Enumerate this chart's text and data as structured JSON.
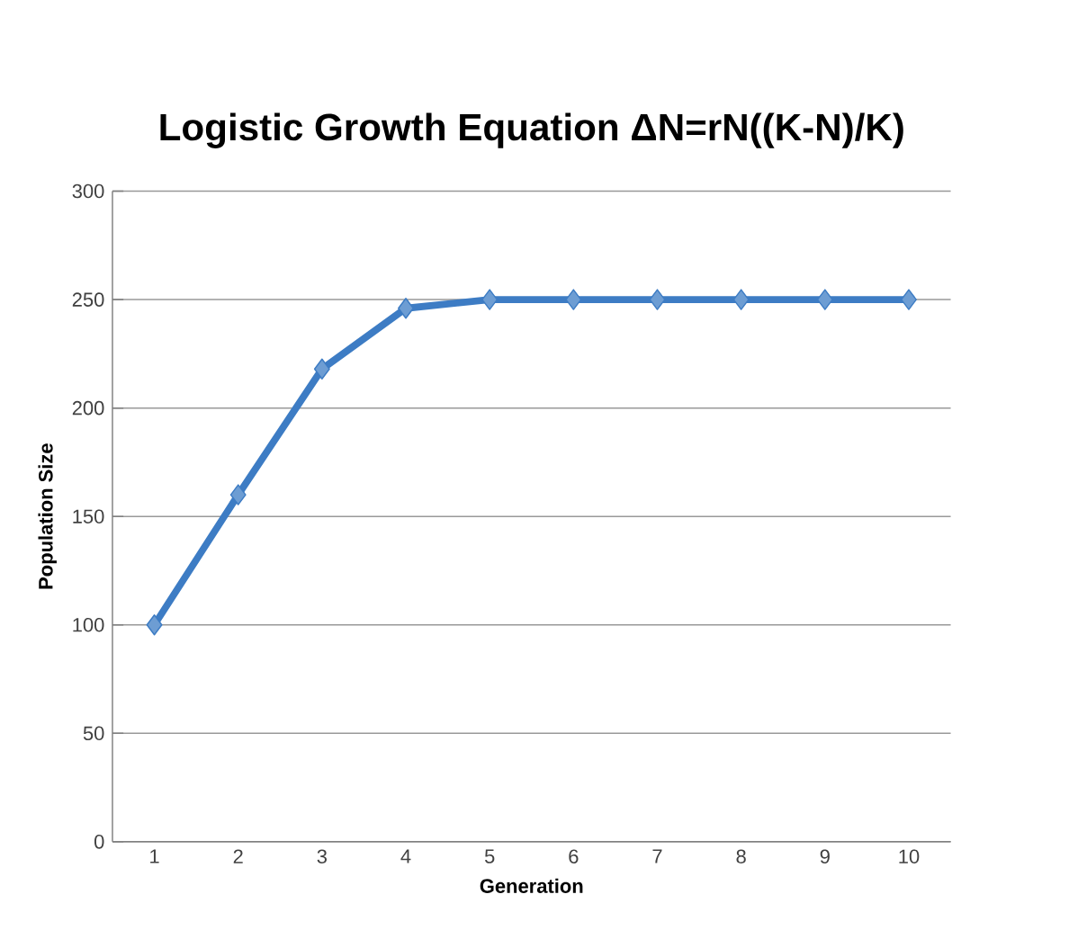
{
  "chart_data": {
    "type": "line",
    "title": "Logistic Growth Equation ΔN=rN((K-N)/K)",
    "xlabel": "Generation",
    "ylabel": "Population  Size",
    "categories": [
      "1",
      "2",
      "3",
      "4",
      "5",
      "6",
      "7",
      "8",
      "9",
      "10"
    ],
    "series": [
      {
        "color": "#3d7cc4",
        "values": [
          100,
          160,
          218,
          246,
          250,
          250,
          250,
          250,
          250,
          250
        ]
      }
    ],
    "ylim": [
      0,
      300
    ],
    "yticks": [
      0,
      50,
      100,
      150,
      200,
      250,
      300
    ],
    "grid": "y",
    "marker": "diamond",
    "line_style": "solid"
  }
}
